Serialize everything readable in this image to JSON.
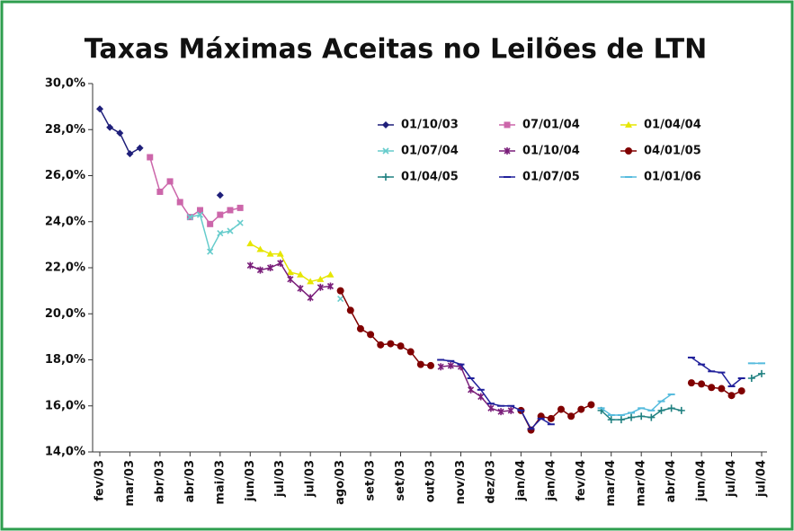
{
  "chart_data": {
    "type": "line",
    "title": "Taxas Máximas Aceitas no Leilões de LTN",
    "categories": [
      "fev/03",
      null,
      null,
      "mar/03",
      null,
      null,
      "abr/03",
      null,
      null,
      "abr/03",
      null,
      null,
      "mai/03",
      null,
      null,
      "jun/03",
      null,
      null,
      "jul/03",
      null,
      null,
      "jul/03",
      null,
      null,
      "ago/03",
      null,
      null,
      "set/03",
      null,
      null,
      "set/03",
      null,
      null,
      "out/03",
      null,
      null,
      "nov/03",
      null,
      null,
      "dez/03",
      null,
      null,
      "jan/04",
      null,
      null,
      "jan/04",
      null,
      null,
      "fev/04",
      null,
      null,
      "mar/04",
      null,
      null,
      "mar/04",
      null,
      null,
      "abr/04",
      null,
      null,
      "jun/04",
      null,
      null,
      "jul/04",
      null,
      null,
      "jul/04"
    ],
    "ylim": [
      14,
      30
    ],
    "yticks": [
      {
        "value": 14,
        "label": "14,0%"
      },
      {
        "value": 16,
        "label": "16,0%"
      },
      {
        "value": 18,
        "label": "18,0%"
      },
      {
        "value": 20,
        "label": "20,0%"
      },
      {
        "value": 22,
        "label": "22,0%"
      },
      {
        "value": 24,
        "label": "24,0%"
      },
      {
        "value": 26,
        "label": "26,0%"
      },
      {
        "value": 28,
        "label": "28,0%"
      },
      {
        "value": 30,
        "label": "30,0%"
      }
    ],
    "series": [
      {
        "name": "01/10/03",
        "color": "#1f1f7a",
        "marker": "diamond",
        "values": [
          28.9,
          28.1,
          27.85,
          26.95,
          27.2,
          null,
          null,
          null,
          null,
          null,
          null,
          null,
          25.15,
          null,
          null,
          null,
          null,
          null,
          null,
          null,
          null,
          null,
          null,
          null,
          null,
          null,
          null,
          null,
          null,
          null,
          null,
          null,
          null,
          null,
          null,
          null,
          null,
          null,
          null,
          null,
          null,
          null,
          null,
          null,
          null,
          null,
          null,
          null,
          null,
          null,
          null,
          null,
          null,
          null,
          null,
          null,
          null,
          null,
          null,
          null,
          null,
          null,
          null,
          null,
          null,
          null,
          null
        ]
      },
      {
        "name": "07/01/04",
        "color": "#cc66aa",
        "marker": "square",
        "values": [
          null,
          null,
          null,
          null,
          null,
          26.8,
          25.3,
          25.75,
          24.85,
          24.2,
          24.5,
          23.9,
          24.3,
          24.5,
          24.6,
          null,
          null,
          null,
          null,
          null,
          null,
          null,
          null,
          null,
          null,
          null,
          null,
          null,
          null,
          null,
          null,
          null,
          null,
          null,
          null,
          null,
          null,
          null,
          null,
          null,
          null,
          null,
          null,
          null,
          null,
          null,
          null,
          null,
          null,
          null,
          null,
          null,
          null,
          null,
          null,
          null,
          null,
          null,
          null,
          null,
          null,
          null,
          null,
          null,
          null,
          null,
          null
        ]
      },
      {
        "name": "01/04/04",
        "color": "#e6e600",
        "marker": "triangle",
        "values": [
          null,
          null,
          null,
          null,
          null,
          null,
          null,
          null,
          null,
          null,
          null,
          null,
          null,
          null,
          null,
          23.05,
          22.8,
          22.6,
          22.6,
          21.8,
          21.7,
          21.4,
          21.5,
          21.7,
          null,
          null,
          null,
          null,
          null,
          null,
          null,
          null,
          null,
          null,
          null,
          null,
          null,
          null,
          null,
          null,
          null,
          null,
          null,
          null,
          null,
          null,
          null,
          null,
          null,
          null,
          null,
          null,
          null,
          null,
          null,
          null,
          null,
          null,
          null,
          null,
          null,
          null,
          null,
          null,
          null,
          null,
          null
        ]
      },
      {
        "name": "01/07/04",
        "color": "#66cccc",
        "marker": "x",
        "values": [
          null,
          null,
          null,
          null,
          null,
          null,
          null,
          null,
          null,
          24.2,
          24.3,
          22.7,
          23.5,
          23.6,
          23.95,
          null,
          null,
          null,
          null,
          null,
          null,
          null,
          null,
          null,
          20.65,
          null,
          null,
          null,
          null,
          null,
          null,
          null,
          null,
          null,
          null,
          null,
          null,
          null,
          null,
          null,
          null,
          null,
          null,
          null,
          null,
          null,
          null,
          null,
          null,
          null,
          null,
          null,
          null,
          null,
          null,
          null,
          null,
          null,
          null,
          null,
          null,
          null,
          null,
          null,
          null,
          null,
          null
        ]
      },
      {
        "name": "01/10/04",
        "color": "#7a1f7a",
        "marker": "star",
        "values": [
          null,
          null,
          null,
          null,
          null,
          null,
          null,
          null,
          null,
          null,
          null,
          null,
          null,
          null,
          null,
          22.1,
          21.9,
          22.0,
          22.2,
          21.5,
          21.1,
          20.7,
          21.15,
          21.2,
          null,
          null,
          null,
          null,
          null,
          null,
          null,
          null,
          null,
          null,
          17.7,
          17.75,
          17.7,
          16.7,
          16.4,
          15.9,
          15.75,
          15.8,
          null,
          null,
          null,
          null,
          null,
          null,
          null,
          null,
          null,
          null,
          null,
          null,
          null,
          null,
          null,
          null,
          null,
          null,
          null,
          null,
          null,
          null,
          null,
          null,
          null
        ]
      },
      {
        "name": "04/01/05",
        "color": "#800000",
        "marker": "circle",
        "values": [
          null,
          null,
          null,
          null,
          null,
          null,
          null,
          null,
          null,
          null,
          null,
          null,
          null,
          null,
          null,
          null,
          null,
          null,
          null,
          null,
          null,
          null,
          null,
          null,
          21.0,
          20.15,
          19.35,
          19.1,
          18.65,
          18.7,
          18.6,
          18.35,
          17.8,
          17.75,
          null,
          null,
          null,
          null,
          null,
          null,
          null,
          null,
          15.8,
          14.95,
          15.55,
          15.45,
          15.85,
          15.55,
          15.85,
          16.05,
          null,
          null,
          null,
          null,
          null,
          null,
          null,
          null,
          null,
          17.0,
          16.95,
          16.8,
          16.75,
          16.45,
          16.65,
          null,
          null
        ]
      },
      {
        "name": "01/04/05",
        "color": "#1f8080",
        "marker": "plus",
        "values": [
          null,
          null,
          null,
          null,
          null,
          null,
          null,
          null,
          null,
          null,
          null,
          null,
          null,
          null,
          null,
          null,
          null,
          null,
          null,
          null,
          null,
          null,
          null,
          null,
          null,
          null,
          null,
          null,
          null,
          null,
          null,
          null,
          null,
          null,
          null,
          null,
          null,
          null,
          null,
          null,
          null,
          null,
          null,
          null,
          null,
          null,
          null,
          null,
          null,
          null,
          15.8,
          15.4,
          15.4,
          15.5,
          15.55,
          15.5,
          15.8,
          15.9,
          15.8,
          null,
          null,
          null,
          null,
          null,
          null,
          17.2,
          17.4
        ]
      },
      {
        "name": "01/07/05",
        "color": "#1f1f9a",
        "marker": "dash",
        "values": [
          null,
          null,
          null,
          null,
          null,
          null,
          null,
          null,
          null,
          null,
          null,
          null,
          null,
          null,
          null,
          null,
          null,
          null,
          null,
          null,
          null,
          null,
          null,
          null,
          null,
          null,
          null,
          null,
          null,
          null,
          null,
          null,
          null,
          null,
          18.0,
          17.95,
          17.8,
          17.2,
          16.7,
          16.1,
          16.0,
          16.0,
          15.8,
          15.0,
          15.45,
          15.2,
          null,
          null,
          null,
          null,
          null,
          null,
          null,
          null,
          null,
          null,
          null,
          null,
          null,
          18.1,
          17.8,
          17.5,
          17.45,
          16.85,
          17.2,
          null,
          null
        ]
      },
      {
        "name": "01/01/06",
        "color": "#55bbdd",
        "marker": "dash",
        "values": [
          null,
          null,
          null,
          null,
          null,
          null,
          null,
          null,
          null,
          null,
          null,
          null,
          null,
          null,
          null,
          null,
          null,
          null,
          null,
          null,
          null,
          null,
          null,
          null,
          null,
          null,
          null,
          null,
          null,
          null,
          null,
          null,
          null,
          null,
          null,
          null,
          null,
          null,
          null,
          null,
          null,
          null,
          null,
          null,
          null,
          null,
          null,
          null,
          null,
          null,
          15.9,
          15.6,
          15.6,
          15.7,
          15.9,
          15.8,
          16.2,
          16.5,
          null,
          null,
          null,
          null,
          null,
          null,
          null,
          17.85,
          17.85
        ]
      }
    ]
  }
}
